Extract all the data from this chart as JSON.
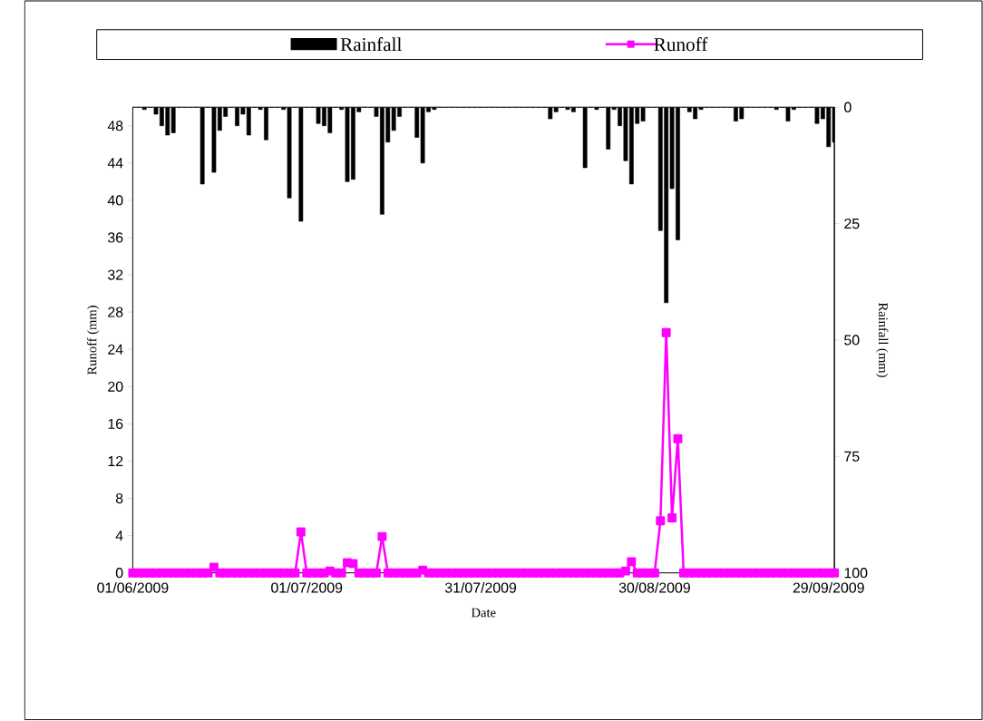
{
  "chart_data": {
    "type": "line",
    "xlabel": "Date",
    "ylabel": "Runoff (mm)",
    "y2label": "Rainfall (mm)",
    "x": [
      "2009-06-01",
      "2009-06-02",
      "2009-06-03",
      "2009-06-04",
      "2009-06-05",
      "2009-06-06",
      "2009-06-07",
      "2009-06-08",
      "2009-06-09",
      "2009-06-10",
      "2009-06-11",
      "2009-06-12",
      "2009-06-13",
      "2009-06-14",
      "2009-06-15",
      "2009-06-16",
      "2009-06-17",
      "2009-06-18",
      "2009-06-19",
      "2009-06-20",
      "2009-06-21",
      "2009-06-22",
      "2009-06-23",
      "2009-06-24",
      "2009-06-25",
      "2009-06-26",
      "2009-06-27",
      "2009-06-28",
      "2009-06-29",
      "2009-06-30",
      "2009-07-01",
      "2009-07-02",
      "2009-07-03",
      "2009-07-04",
      "2009-07-05",
      "2009-07-06",
      "2009-07-07",
      "2009-07-08",
      "2009-07-09",
      "2009-07-10",
      "2009-07-11",
      "2009-07-12",
      "2009-07-13",
      "2009-07-14",
      "2009-07-15",
      "2009-07-16",
      "2009-07-17",
      "2009-07-18",
      "2009-07-19",
      "2009-07-20",
      "2009-07-21",
      "2009-07-22",
      "2009-07-23",
      "2009-07-24",
      "2009-07-25",
      "2009-07-26",
      "2009-07-27",
      "2009-07-28",
      "2009-07-29",
      "2009-07-30",
      "2009-07-31",
      "2009-08-01",
      "2009-08-02",
      "2009-08-03",
      "2009-08-04",
      "2009-08-05",
      "2009-08-06",
      "2009-08-07",
      "2009-08-08",
      "2009-08-09",
      "2009-08-10",
      "2009-08-11",
      "2009-08-12",
      "2009-08-13",
      "2009-08-14",
      "2009-08-15",
      "2009-08-16",
      "2009-08-17",
      "2009-08-18",
      "2009-08-19",
      "2009-08-20",
      "2009-08-21",
      "2009-08-22",
      "2009-08-23",
      "2009-08-24",
      "2009-08-25",
      "2009-08-26",
      "2009-08-27",
      "2009-08-28",
      "2009-08-29",
      "2009-08-30",
      "2009-08-31",
      "2009-09-01",
      "2009-09-02",
      "2009-09-03",
      "2009-09-04",
      "2009-09-05",
      "2009-09-06",
      "2009-09-07",
      "2009-09-08",
      "2009-09-09",
      "2009-09-10",
      "2009-09-11",
      "2009-09-12",
      "2009-09-13",
      "2009-09-14",
      "2009-09-15",
      "2009-09-16",
      "2009-09-17",
      "2009-09-18",
      "2009-09-19",
      "2009-09-20",
      "2009-09-21",
      "2009-09-22",
      "2009-09-23",
      "2009-09-24",
      "2009-09-25",
      "2009-09-26",
      "2009-09-27",
      "2009-09-28",
      "2009-09-29",
      "2009-09-30"
    ],
    "series": [
      {
        "name": "Rainfall",
        "type": "bar",
        "axis": "y2",
        "color": "#000000",
        "values": [
          0,
          0,
          0.5,
          0,
          1.5,
          4,
          6,
          5.5,
          0,
          0,
          0,
          0,
          16.5,
          0,
          14,
          5,
          2,
          0,
          4,
          1.5,
          6,
          0,
          0.5,
          7,
          0,
          0,
          0.5,
          19.5,
          0,
          24.5,
          0,
          0,
          3.5,
          4,
          5.5,
          0,
          0.5,
          16,
          15.5,
          1,
          0,
          0,
          2,
          23,
          7.5,
          5,
          2,
          0,
          0,
          6.5,
          12,
          1,
          0.5,
          0,
          0,
          0,
          0,
          0,
          0,
          0,
          0,
          0,
          0,
          0,
          0,
          0,
          0,
          0,
          0,
          0,
          0,
          0,
          2.5,
          1,
          0,
          0.5,
          1,
          0,
          13,
          0,
          0.5,
          0,
          9,
          0.5,
          4,
          11.5,
          16.5,
          3.5,
          3,
          0,
          0,
          26.5,
          42,
          17.5,
          28.5,
          0,
          1,
          2.5,
          0.5,
          0,
          0,
          0,
          0,
          0,
          3,
          2.5,
          0,
          0,
          0,
          0,
          0,
          0.5,
          0,
          3,
          0.5,
          0,
          0,
          0,
          3.5,
          2.5,
          8.5,
          7.5
        ]
      },
      {
        "name": "Runoff",
        "color": "#ff00ff",
        "values": [
          0,
          0,
          0,
          0,
          0,
          0,
          0,
          0,
          0,
          0,
          0,
          0,
          0,
          0,
          0.6,
          0,
          0,
          0,
          0,
          0,
          0,
          0,
          0,
          0,
          0,
          0,
          0,
          0,
          0,
          4.4,
          0,
          0,
          0,
          0,
          0.2,
          0,
          0,
          1.1,
          1.0,
          0,
          0,
          0,
          0,
          3.9,
          0,
          0,
          0,
          0,
          0,
          0,
          0.3,
          0,
          0,
          0,
          0,
          0,
          0,
          0,
          0,
          0,
          0,
          0,
          0,
          0,
          0,
          0,
          0,
          0,
          0,
          0,
          0,
          0,
          0,
          0,
          0,
          0,
          0,
          0,
          0,
          0,
          0,
          0,
          0,
          0,
          0,
          0.2,
          1.2,
          0,
          0,
          0,
          0,
          5.6,
          25.8,
          5.9,
          14.4,
          0,
          0,
          0,
          0,
          0,
          0,
          0,
          0,
          0,
          0,
          0,
          0,
          0,
          0,
          0,
          0,
          0,
          0,
          0,
          0,
          0,
          0,
          0,
          0,
          0,
          0,
          0
        ]
      }
    ],
    "xlim": [
      "2009-06-01",
      "2009-09-30"
    ],
    "xticks": [
      {
        "value": "2009-06-01",
        "label": "01/06/2009"
      },
      {
        "value": "2009-07-01",
        "label": "01/07/2009"
      },
      {
        "value": "2009-07-31",
        "label": "31/07/2009"
      },
      {
        "value": "2009-08-30",
        "label": "30/08/2009"
      },
      {
        "value": "2009-09-29",
        "label": "29/09/2009"
      }
    ],
    "ylim": [
      0,
      50
    ],
    "yticks": [
      0,
      4,
      8,
      12,
      16,
      20,
      24,
      28,
      32,
      36,
      40,
      44,
      48
    ],
    "y2lim": [
      100,
      0
    ],
    "y2ticks": [
      0,
      25,
      50,
      75,
      100
    ],
    "marker": "square",
    "legend": "top",
    "grid": false
  }
}
